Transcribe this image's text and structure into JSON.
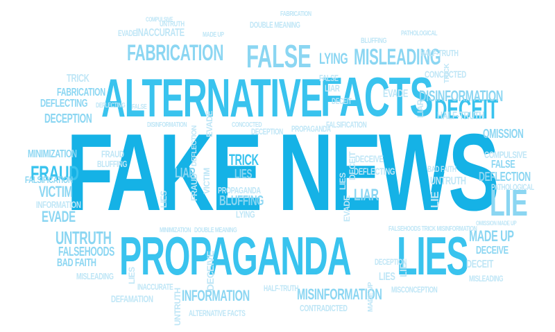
{
  "cloud": {
    "colors": {
      "deep": "#15b2e6",
      "mid": "#39c3ee",
      "light": "#8bd6f2",
      "faint": "#bfe6f6"
    },
    "words": {
      "fake_news": "FAKE NEWS",
      "alternative": "ALTERNATIVE",
      "facts": "FACTS",
      "propaganda": "PROPAGANDA",
      "lies": "LIES",
      "fabrication": "FABRICATION",
      "false": "FALSE",
      "lying": "LYING",
      "misleading": "MISLEADING",
      "deceit": "DECEIT",
      "disinformation": "DISINFORMATION",
      "omission": "OMISSION",
      "deflecting": "DEFLECTING",
      "deception": "DECEPTION",
      "minimization": "MINIMIZATION",
      "fraud": "FRAUD",
      "falsification": "FALSIFICATION",
      "victim": "VICTIM",
      "information": "INFORMATION",
      "evade": "EVADE",
      "untruth": "UNTRUTH",
      "falsehoods": "FALSEHOODS",
      "bad_faith": "BAD FAITH",
      "trick": "TRICK",
      "liar": "LIAR",
      "bluffing": "BLUFFING",
      "made_up": "MADE UP",
      "deceive": "DECEIVE",
      "lie": "LIE",
      "compulsive": "COMPULSIVE",
      "deflection": "DEFLECTION",
      "inaccurate": "INACCURATE",
      "defamation": "DEFAMATION",
      "misinformation": "MISINFORMATION",
      "contradicted": "CONTRADICTED",
      "alternative_facts": "ALTERNATIVE FACTS",
      "misconception": "MISCONCEPTION",
      "half_truth": "HALF-TRUTH",
      "pathological": "PATHOLOGICAL",
      "concocted": "CONCOCTED",
      "double_meaning": "DOUBLE MEANING",
      "falsehoods_trick_misinformation": "FALSEHOODS TRICK MISINFORMATION",
      "omission_made_up": "OMISSION MADE UP",
      "double_meaning_lower": "DOUBLE MEANING"
    }
  }
}
